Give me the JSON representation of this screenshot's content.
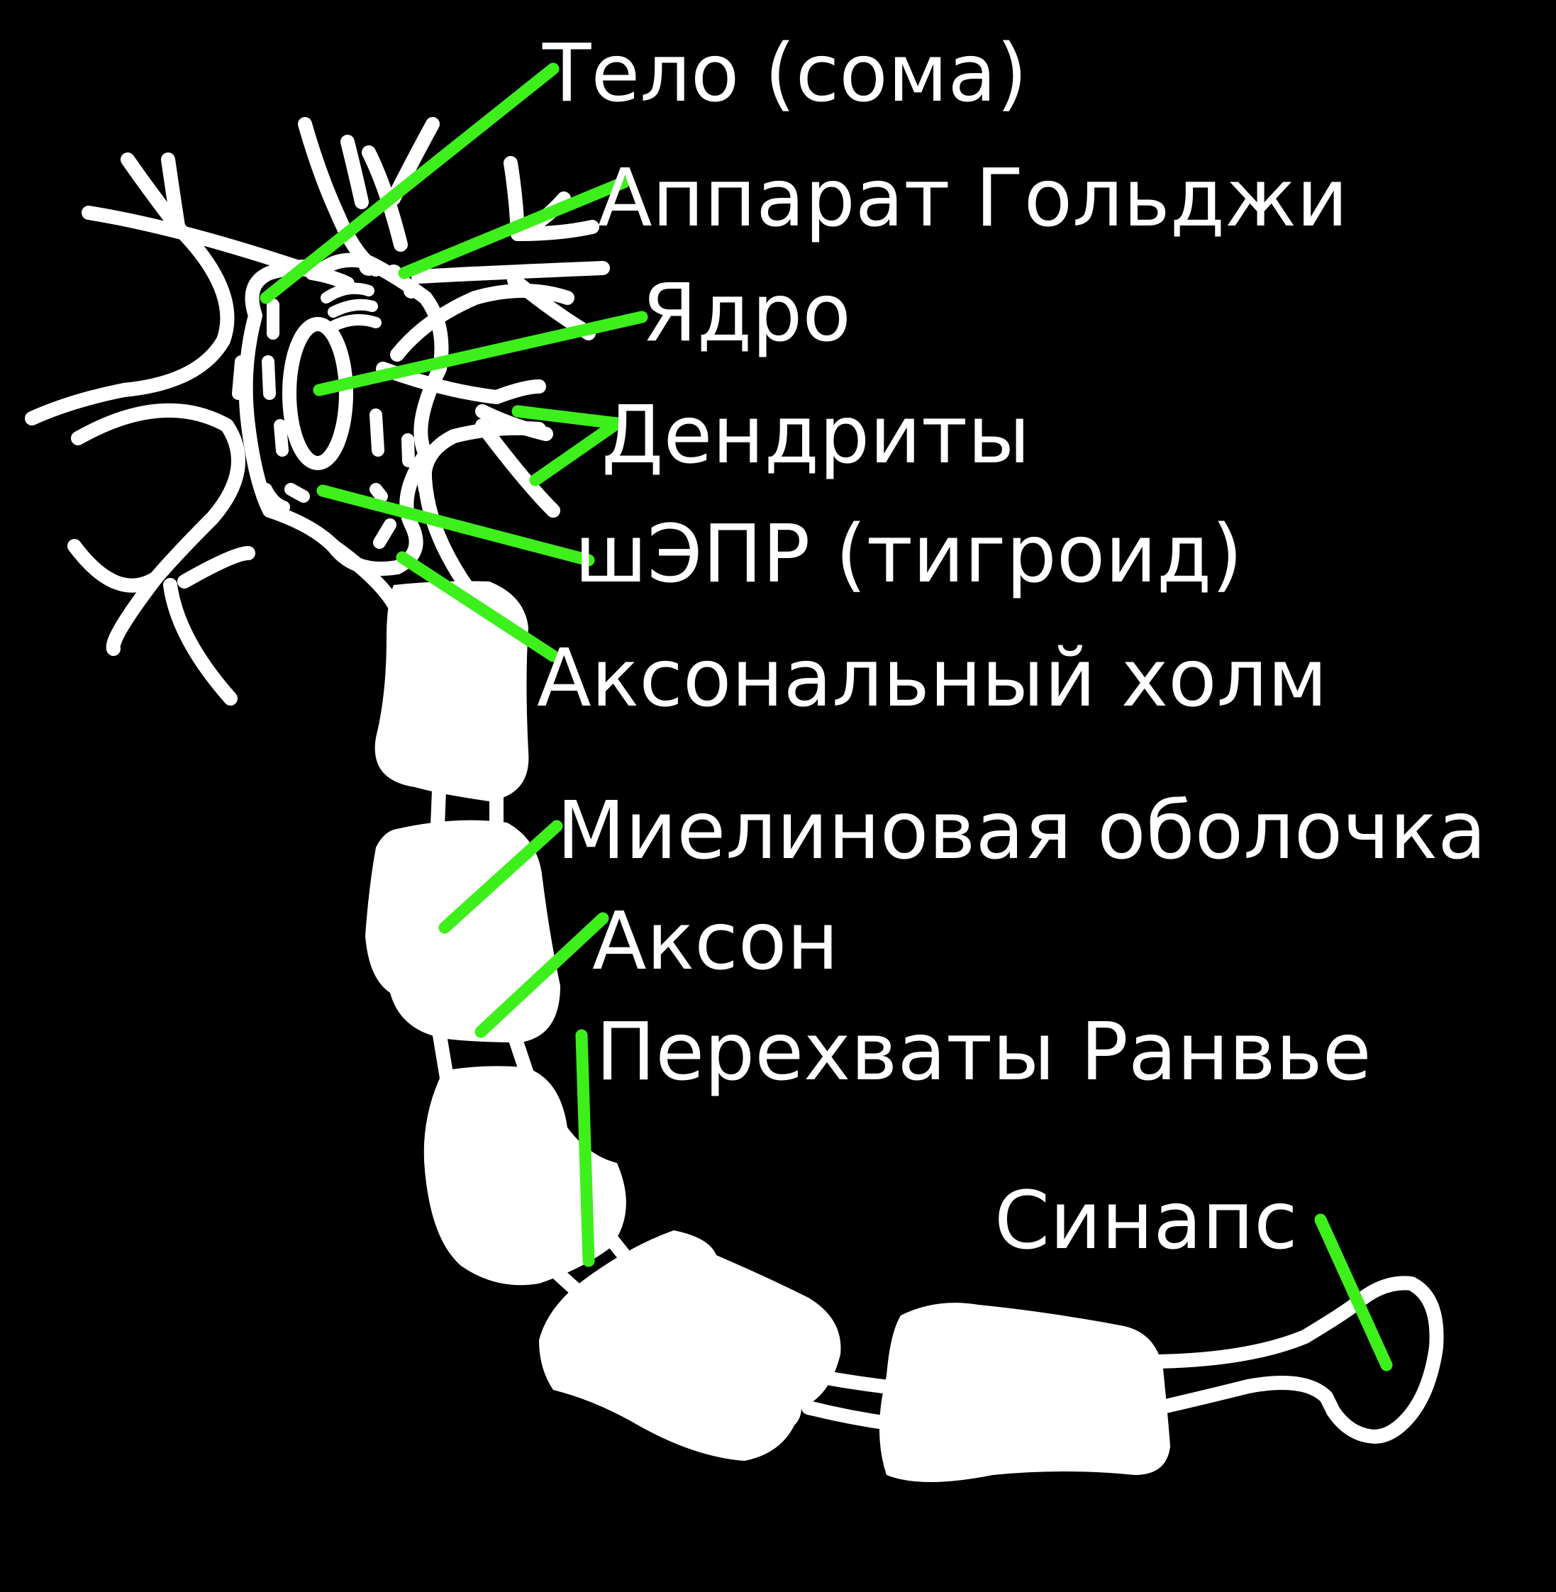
{
  "labels": {
    "soma": "Тело (сома)",
    "golgi": "Аппарат Гольджи",
    "nucleus": "Ядро",
    "dendrites": "Дендриты",
    "rer": "шЭПР (тигроид)",
    "axon_hillock": "Аксональный холм",
    "myelin": "Миелиновая оболочка",
    "axon": "Аксон",
    "ranvier": "Перехваты Ранвье",
    "synapse": "Синапс"
  },
  "colors": {
    "background": "#000000",
    "drawing": "#ffffff",
    "pointer": "#3df01c"
  }
}
